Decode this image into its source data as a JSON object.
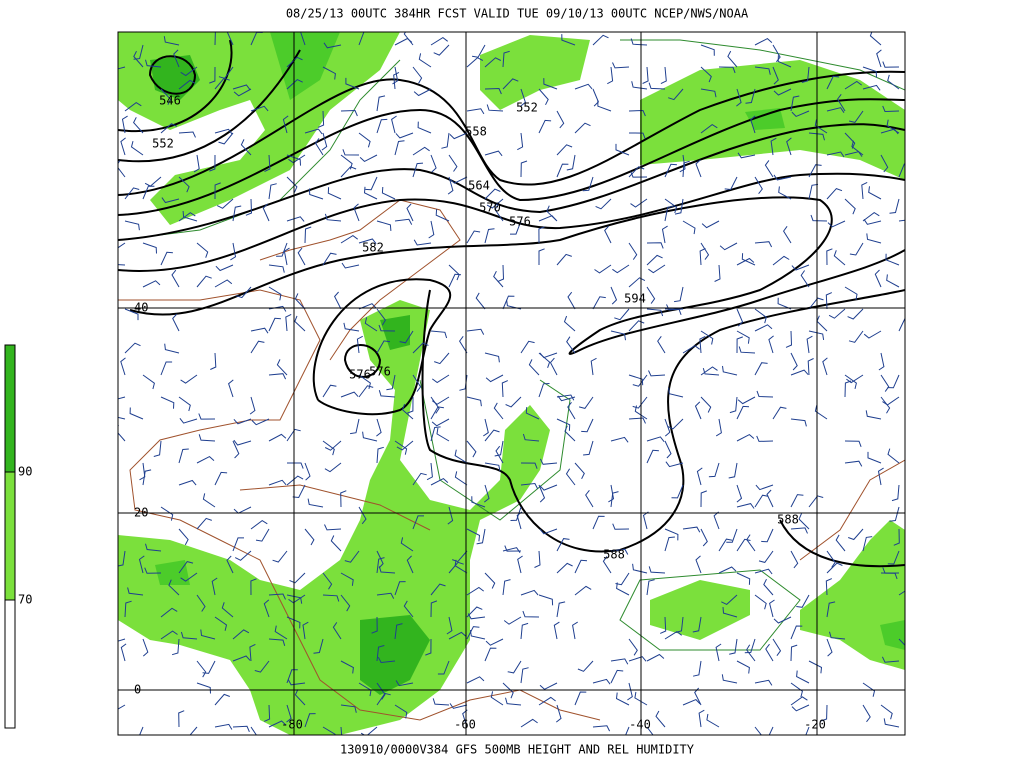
{
  "header": {
    "title": "08/25/13 00UTC  384HR  FCST VALID TUE 09/10/13 00UTC  NCEP/NWS/NOAA"
  },
  "footer": {
    "caption": "130910/0000V384 GFS 500MB HEIGHT AND REL HUMIDITY"
  },
  "map": {
    "latitude_labels": [
      "40",
      "20",
      "0"
    ],
    "longitude_labels": [
      "-80",
      "-60",
      "-40",
      "-20"
    ],
    "contour_labels": [
      "546",
      "552",
      "552",
      "558",
      "564",
      "570",
      "576",
      "582",
      "594",
      "576",
      "576",
      "588",
      "588"
    ]
  },
  "colorbar": {
    "labels": [
      "90",
      "70"
    ]
  }
}
